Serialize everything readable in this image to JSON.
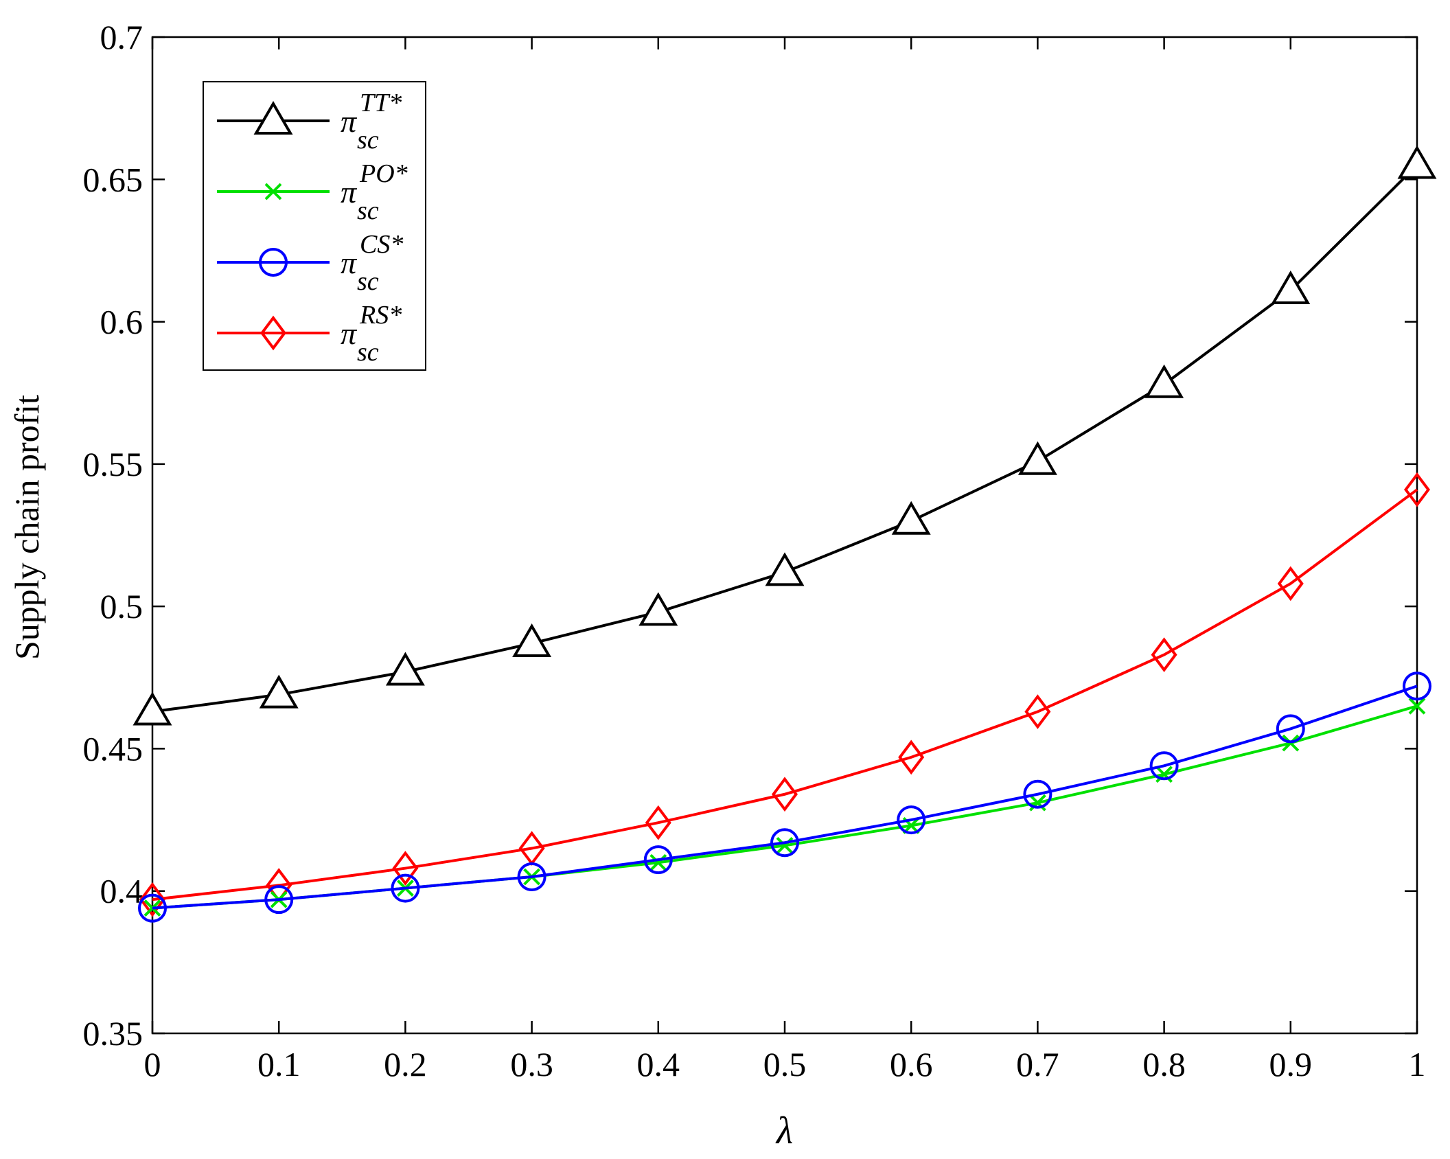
{
  "chart_data": {
    "type": "line",
    "xlabel": "λ",
    "ylabel": "Supply chain profit",
    "xlim": [
      0,
      1
    ],
    "ylim": [
      0.35,
      0.7
    ],
    "x": [
      0,
      0.1,
      0.2,
      0.3,
      0.4,
      0.5,
      0.6,
      0.7,
      0.8,
      0.9,
      1
    ],
    "x_tick_labels": [
      "0",
      "0.1",
      "0.2",
      "0.3",
      "0.4",
      "0.5",
      "0.6",
      "0.7",
      "0.8",
      "0.9",
      "1"
    ],
    "y_ticks": [
      0.35,
      0.4,
      0.45,
      0.5,
      0.55,
      0.6,
      0.65,
      0.7
    ],
    "y_tick_labels": [
      "0.35",
      "0.4",
      "0.45",
      "0.5",
      "0.55",
      "0.6",
      "0.65",
      "0.7"
    ],
    "grid": false,
    "legend_position": "top-left",
    "series": [
      {
        "name": "TT*",
        "legend_base": "π",
        "legend_sub": "sc",
        "legend_sup": "TT*",
        "color": "#000000",
        "marker": "triangle",
        "values": [
          0.463,
          0.469,
          0.477,
          0.487,
          0.498,
          0.512,
          0.53,
          0.551,
          0.578,
          0.611,
          0.655
        ]
      },
      {
        "name": "PO*",
        "legend_base": "π",
        "legend_sub": "sc",
        "legend_sup": "PO*",
        "color": "#00e000",
        "marker": "x",
        "values": [
          0.394,
          0.397,
          0.401,
          0.405,
          0.41,
          0.416,
          0.423,
          0.431,
          0.441,
          0.452,
          0.465
        ]
      },
      {
        "name": "CS*",
        "legend_base": "π",
        "legend_sub": "sc",
        "legend_sup": "CS*",
        "color": "#0000ff",
        "marker": "circle",
        "values": [
          0.394,
          0.397,
          0.401,
          0.405,
          0.411,
          0.417,
          0.425,
          0.434,
          0.444,
          0.457,
          0.472
        ]
      },
      {
        "name": "RS*",
        "legend_base": "π",
        "legend_sub": "sc",
        "legend_sup": "RS*",
        "color": "#ff0000",
        "marker": "diamond",
        "values": [
          0.397,
          0.402,
          0.408,
          0.415,
          0.424,
          0.434,
          0.447,
          0.463,
          0.483,
          0.508,
          0.541
        ]
      }
    ]
  }
}
